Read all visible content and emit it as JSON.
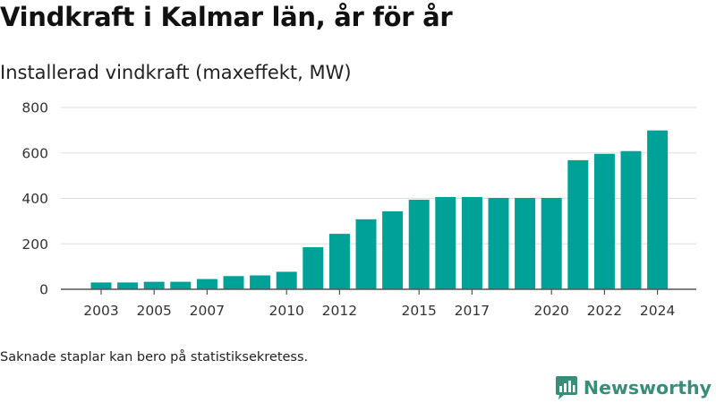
{
  "title": "Vindkraft i Kalmar län, år för år",
  "subtitle": "Installerad vindkraft (maxeffekt, MW)",
  "note": "Saknade staplar kan bero på statistiksekretess.",
  "brand": {
    "name": "Newsworthy",
    "icon": "newsworthy-logo-icon",
    "color": "#3a8d78"
  },
  "chart_data": {
    "type": "bar",
    "title": "",
    "xlabel": "",
    "ylabel": "",
    "bar_color": "#00a298",
    "ylim": [
      0,
      800
    ],
    "yticks": [
      0,
      200,
      400,
      600,
      800
    ],
    "grid": true,
    "legend": "none",
    "categories": [
      "2003",
      "2004",
      "2005",
      "2006",
      "2007",
      "2008",
      "2009",
      "2010",
      "2011",
      "2012",
      "2013",
      "2014",
      "2015",
      "2016",
      "2017",
      "2018",
      "2019",
      "2020",
      "2021",
      "2022",
      "2023",
      "2024"
    ],
    "values": [
      30,
      30,
      33,
      33,
      45,
      58,
      61,
      77,
      185,
      244,
      308,
      343,
      394,
      406,
      406,
      402,
      402,
      402,
      568,
      596,
      608,
      699
    ],
    "xtick_labels": [
      "2003",
      "2005",
      "2007",
      "2010",
      "2012",
      "2015",
      "2017",
      "2020",
      "2022",
      "2024"
    ]
  }
}
